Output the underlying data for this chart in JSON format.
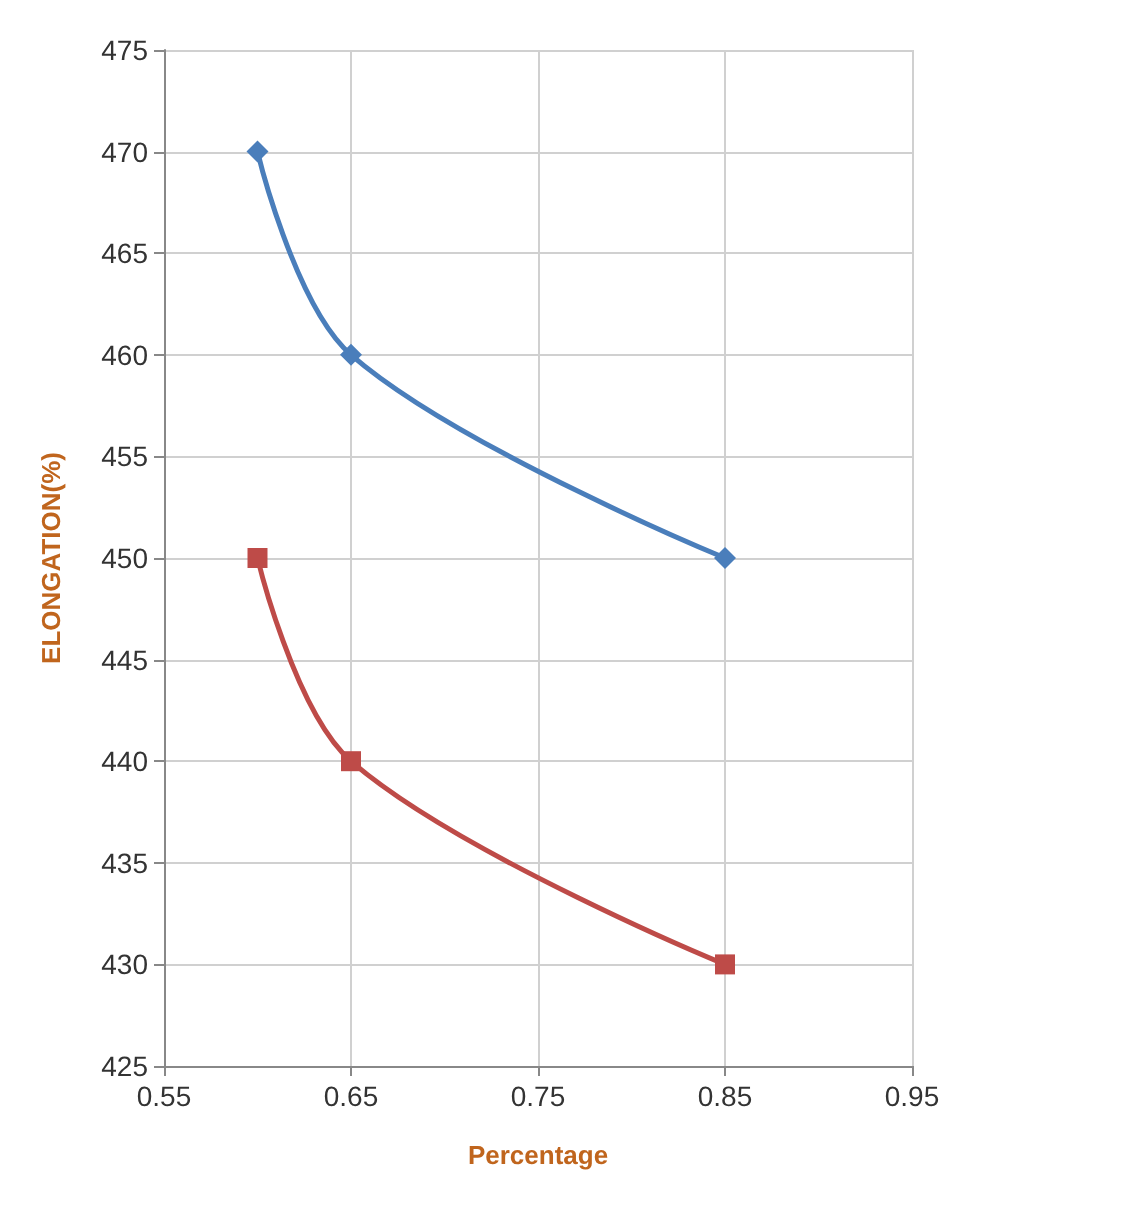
{
  "chart_data": {
    "type": "line",
    "xlabel": "Percentage",
    "ylabel": "ELONGATION(%)",
    "xlim": [
      0.55,
      0.95
    ],
    "xticks": [
      0.55,
      0.65,
      0.75,
      0.85,
      0.95
    ],
    "ylim": [
      425,
      475
    ],
    "yticks": [
      425,
      430,
      435,
      440,
      445,
      450,
      455,
      460,
      465,
      470,
      475
    ],
    "grid": true,
    "series": [
      {
        "color": "#4a7ebb",
        "marker": "diamond",
        "x": [
          0.6,
          0.65,
          0.85
        ],
        "values": [
          470,
          460,
          450
        ]
      },
      {
        "color": "#be4b48",
        "marker": "square",
        "x": [
          0.6,
          0.65,
          0.85
        ],
        "values": [
          450,
          440,
          430
        ]
      }
    ]
  }
}
